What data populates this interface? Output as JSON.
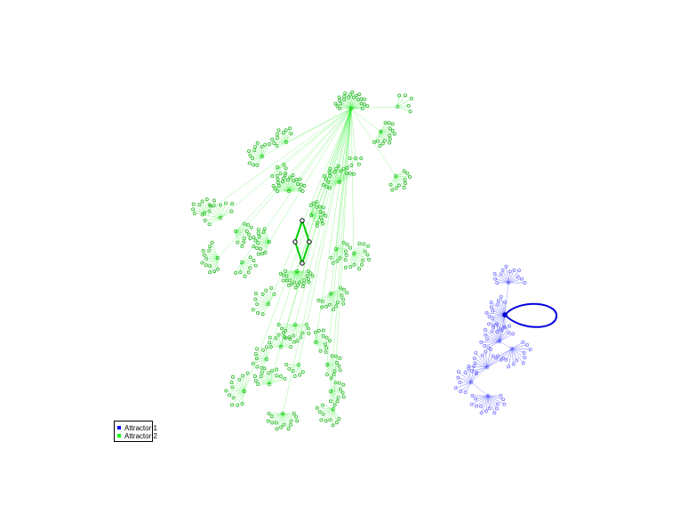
{
  "legend": {
    "items": [
      {
        "label": "Attractor 1",
        "color": "#0000ff"
      },
      {
        "label": "Attractor 2",
        "color": "#00ff00"
      }
    ]
  },
  "colors": {
    "attractor1_node": "#8080ff",
    "attractor1_edge": "#0000ff",
    "attractor2_node": "#33bb33",
    "attractor2_edge": "#00ee00"
  }
}
